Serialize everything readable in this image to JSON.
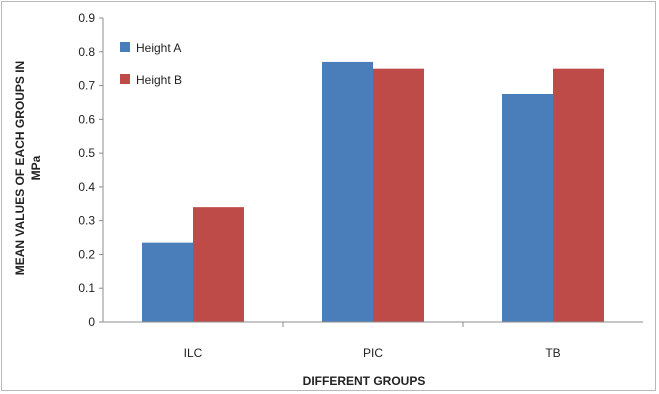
{
  "chart_data": {
    "type": "bar",
    "title": "",
    "categories": [
      "ILC",
      "PIC",
      "TB"
    ],
    "series": [
      {
        "name": "Height A",
        "color": "#4a7ebb",
        "values": [
          0.235,
          0.77,
          0.675
        ]
      },
      {
        "name": "Height B",
        "color": "#be4b48",
        "values": [
          0.34,
          0.75,
          0.75
        ]
      }
    ],
    "xlabel": "DIFFERENT GROUPS",
    "ylabel_lines": [
      "MEAN VALUES OF EACH GROUPS IN",
      "MPa"
    ],
    "ylim": [
      0,
      0.9
    ],
    "yticks": [
      "0",
      "0.1",
      "0.2",
      "0.3",
      "0.4",
      "0.5",
      "0.6",
      "0.7",
      "0.8",
      "0.9"
    ],
    "grid": false,
    "legend_position": "top-left"
  }
}
